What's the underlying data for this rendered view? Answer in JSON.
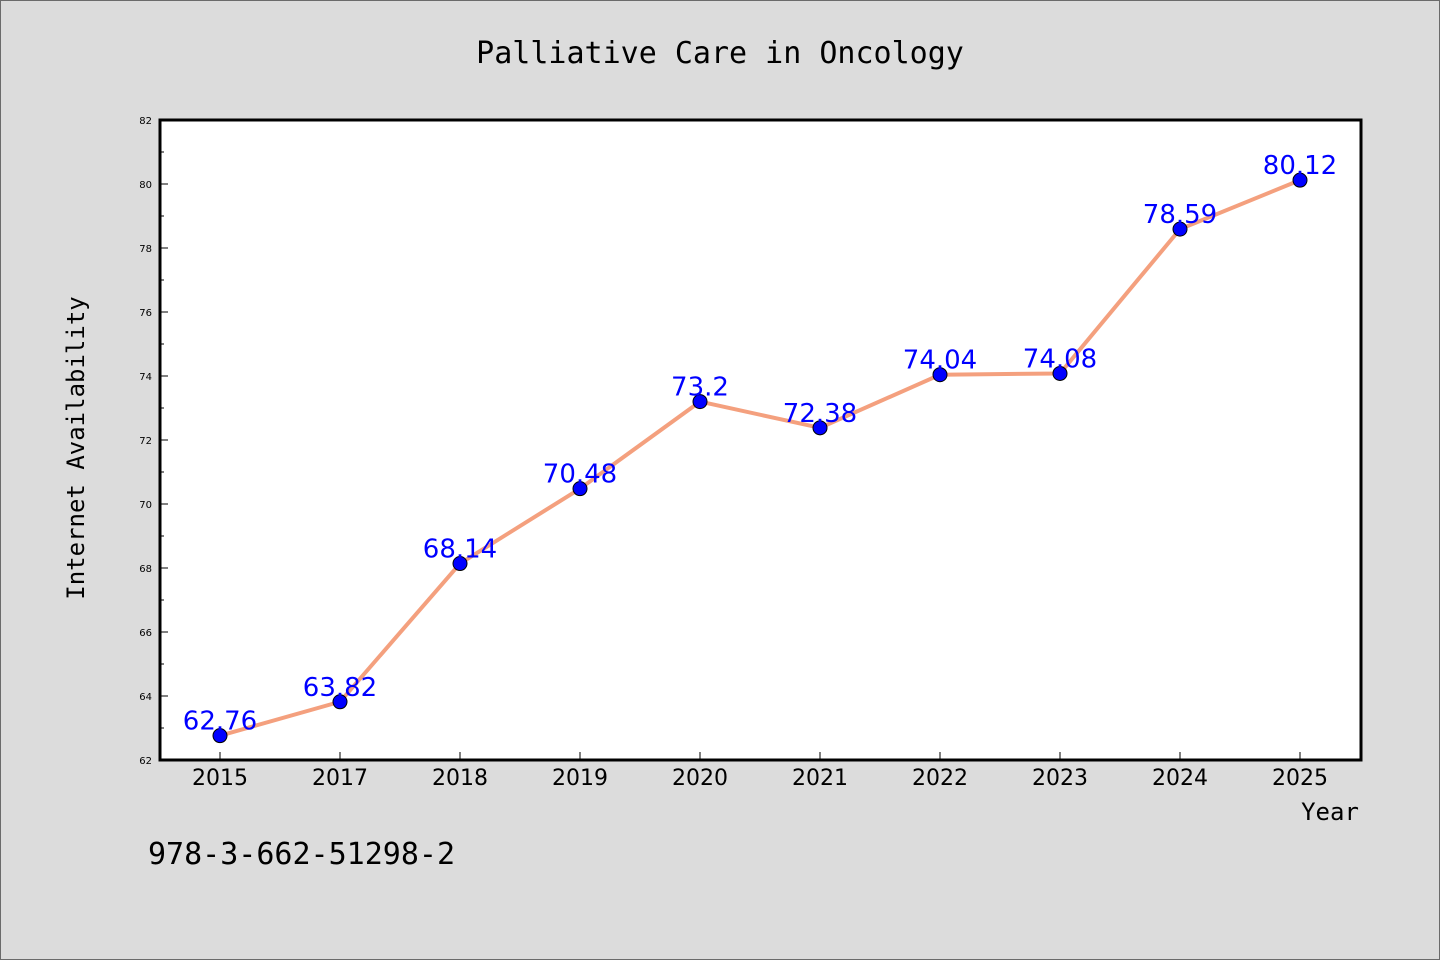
{
  "chart_data": {
    "type": "line",
    "title": "Palliative Care in Oncology",
    "xlabel": "Year",
    "ylabel": "Internet Availability",
    "categories": [
      "2015",
      "2017",
      "2018",
      "2019",
      "2020",
      "2021",
      "2022",
      "2023",
      "2024",
      "2025"
    ],
    "values": [
      62.76,
      63.82,
      68.14,
      70.48,
      73.2,
      72.38,
      74.04,
      74.08,
      78.59,
      80.12
    ],
    "data_labels": [
      "62.76",
      "63.82",
      "68.14",
      "70.48",
      "73.2",
      "72.38",
      "74.04",
      "74.08",
      "78.59",
      "80.12"
    ],
    "ylim": [
      62,
      82
    ],
    "yticks": [
      "62",
      "64",
      "66",
      "68",
      "70",
      "72",
      "74",
      "76",
      "78",
      "80",
      "82"
    ],
    "grid": false,
    "line_color": "#f4a07e",
    "marker_color": "#0000ff",
    "label_color": "#0000ff",
    "background": "#dcdcdc"
  },
  "footer_text": "978-3-662-51298-2"
}
